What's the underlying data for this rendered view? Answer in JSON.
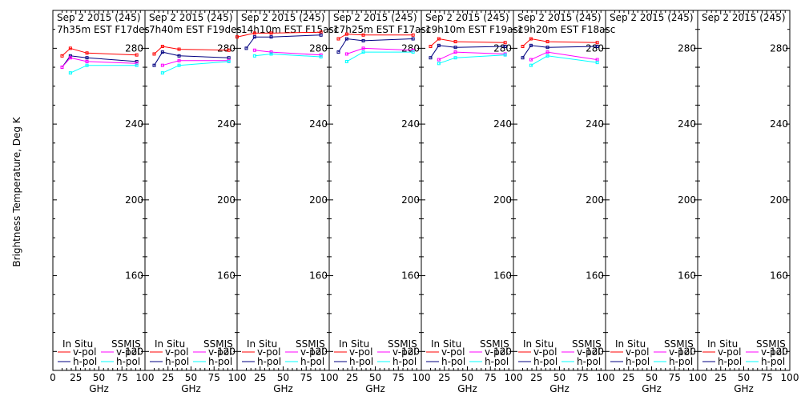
{
  "chart_data": {
    "type": "line",
    "ylabel": "Brightness Temperature, Deg K",
    "xlabel": "GHz",
    "xlim": [
      0,
      100
    ],
    "ylim": [
      110,
      300
    ],
    "xticks": [
      0,
      25,
      50,
      75,
      100
    ],
    "xtick_labels": [
      "0",
      "25",
      "50",
      "75",
      "100"
    ],
    "yticks": [
      120,
      160,
      200,
      240,
      280
    ],
    "legend": {
      "in_situ": "In Situ",
      "ssmis": "SSMIS",
      "v_pol": "v-pol",
      "h_pol": "h-pol"
    },
    "colors": {
      "insitu_v": "#ff0000",
      "insitu_h": "#000080",
      "ssmis_v": "#ff00ff",
      "ssmis_h": "#00ffff"
    },
    "panels": [
      {
        "title1": "Sep 2 2015 (245)",
        "title2": "7h35m  EST  F17des",
        "series": [
          {
            "key": "insitu_v",
            "x": [
              10,
              19,
              37,
              91
            ],
            "y": [
              276,
              280,
              277.5,
              276.5
            ]
          },
          {
            "key": "insitu_h",
            "x": [
              10,
              19,
              37,
              91
            ],
            "y": [
              270,
              276,
              275,
              273
            ]
          },
          {
            "key": "ssmis_v",
            "x": [
              10,
              19,
              37,
              91
            ],
            "y": [
              270,
              275,
              273,
              272
            ]
          },
          {
            "key": "ssmis_h",
            "x": [
              19,
              37,
              91
            ],
            "y": [
              267,
              271,
              271
            ]
          }
        ]
      },
      {
        "title1": "Sep 2 2015 (245)",
        "title2": "7h40m  EST  F19des",
        "series": [
          {
            "key": "insitu_v",
            "x": [
              10,
              19,
              37,
              91
            ],
            "y": [
              277,
              281,
              279.5,
              279
            ]
          },
          {
            "key": "insitu_h",
            "x": [
              10,
              19,
              37,
              91
            ],
            "y": [
              271,
              278,
              276,
              275
            ]
          },
          {
            "key": "ssmis_v",
            "x": [
              19,
              37,
              91
            ],
            "y": [
              271,
              273.5,
              273.5
            ]
          },
          {
            "key": "ssmis_h",
            "x": [
              19,
              37,
              91
            ],
            "y": [
              267,
              271,
              273
            ]
          }
        ]
      },
      {
        "title1": "Sep 2 2015 (245)",
        "title2": "14h10m  EST  F15asc",
        "series": [
          {
            "key": "insitu_v",
            "x": [
              0,
              19,
              37,
              91
            ],
            "y": [
              286,
              288,
              288,
              288.5
            ]
          },
          {
            "key": "insitu_h",
            "x": [
              10,
              19,
              37,
              91
            ],
            "y": [
              280,
              286,
              286,
              287
            ]
          },
          {
            "key": "ssmis_v",
            "x": [
              19,
              37,
              91
            ],
            "y": [
              279,
              278,
              276.5
            ]
          },
          {
            "key": "ssmis_h",
            "x": [
              19,
              37,
              91
            ],
            "y": [
              276,
              277,
              275.5
            ]
          }
        ]
      },
      {
        "title1": "Sep 2 2015 (245)",
        "title2": "17h25m  EST  F17asc",
        "series": [
          {
            "key": "insitu_v",
            "x": [
              10,
              19,
              37,
              91
            ],
            "y": [
              285,
              287.5,
              287,
              287
            ]
          },
          {
            "key": "insitu_h",
            "x": [
              10,
              19,
              37,
              91
            ],
            "y": [
              278,
              285,
              284,
              285
            ]
          },
          {
            "key": "ssmis_v",
            "x": [
              19,
              37,
              91
            ],
            "y": [
              277,
              280,
              279
            ]
          },
          {
            "key": "ssmis_h",
            "x": [
              19,
              37,
              91
            ],
            "y": [
              273,
              278,
              278
            ]
          }
        ]
      },
      {
        "title1": "Sep 2 2015 (245)",
        "title2": "19h10m  EST  F19asc",
        "series": [
          {
            "key": "insitu_v",
            "x": [
              10,
              19,
              37,
              91
            ],
            "y": [
              281,
              285,
              283.5,
              283
            ]
          },
          {
            "key": "insitu_h",
            "x": [
              10,
              19,
              37,
              91
            ],
            "y": [
              275,
              281.5,
              280.5,
              281
            ]
          },
          {
            "key": "ssmis_v",
            "x": [
              19,
              37,
              91
            ],
            "y": [
              274,
              278,
              277
            ]
          },
          {
            "key": "ssmis_h",
            "x": [
              19,
              37,
              91
            ],
            "y": [
              272,
              275,
              276.5
            ]
          }
        ]
      },
      {
        "title1": "Sep 2 2015 (245)",
        "title2": "19h20m  EST  F18asc",
        "series": [
          {
            "key": "insitu_v",
            "x": [
              10,
              19,
              37,
              91
            ],
            "y": [
              281,
              285,
              283.5,
              283
            ]
          },
          {
            "key": "insitu_h",
            "x": [
              10,
              19,
              37,
              91
            ],
            "y": [
              275,
              281.5,
              280.5,
              281
            ]
          },
          {
            "key": "ssmis_v",
            "x": [
              19,
              37,
              91
            ],
            "y": [
              274,
              278,
              274
            ]
          },
          {
            "key": "ssmis_h",
            "x": [
              19,
              37,
              91
            ],
            "y": [
              271,
              276,
              272.5
            ]
          }
        ]
      },
      {
        "title1": "Sep 2 2015 (245)",
        "title2": "",
        "series": []
      },
      {
        "title1": "Sep 2 2015 (245)",
        "title2": "",
        "series": []
      }
    ]
  }
}
